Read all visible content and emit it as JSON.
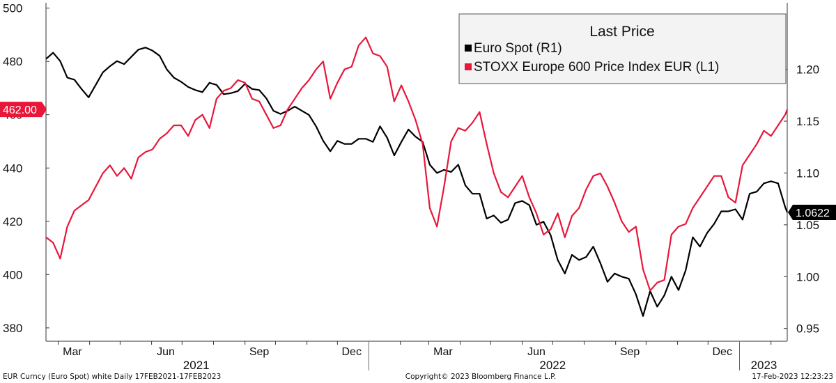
{
  "chart_data": {
    "type": "line",
    "title": "",
    "x_start": "2021-02-17",
    "x_end": "2023-02-17",
    "left_axis": {
      "ylim": [
        375,
        502
      ],
      "ticks": [
        380,
        400,
        420,
        440,
        460,
        480,
        500
      ]
    },
    "right_axis": {
      "ylim": [
        0.9377,
        1.2642
      ],
      "ticks": [
        "0.95",
        "1.00",
        "1.05",
        "1.10",
        "1.15",
        "1.20"
      ]
    },
    "x_month_labels": [
      {
        "label": "Mar",
        "date": "2021-03-15"
      },
      {
        "label": "Jun",
        "date": "2021-06-15"
      },
      {
        "label": "Sep",
        "date": "2021-09-15"
      },
      {
        "label": "Dec",
        "date": "2021-12-15"
      },
      {
        "label": "Mar",
        "date": "2022-03-15"
      },
      {
        "label": "Jun",
        "date": "2022-06-15"
      },
      {
        "label": "Sep",
        "date": "2022-09-15"
      },
      {
        "label": "Dec",
        "date": "2022-12-15"
      }
    ],
    "x_year_labels": [
      {
        "label": "2021",
        "date": "2021-07-15"
      },
      {
        "label": "2022",
        "date": "2022-07-01"
      },
      {
        "label": "2023",
        "date": "2023-01-25"
      }
    ],
    "legend": {
      "title": "Last Price",
      "placement": "top-right",
      "entries": [
        {
          "text": "Euro Spot  (R1)",
          "color": "#000000"
        },
        {
          "text": "STOXX Europe 600 Price Index EUR  (L1)",
          "color": "#e8173a"
        }
      ]
    },
    "series": [
      {
        "name": "STOXX Europe 600 Price Index EUR",
        "axis": "left",
        "color": "#e8173a",
        "last_value_label": "462.00",
        "dates": [
          "2021-02-17",
          "2021-02-24",
          "2021-03-03",
          "2021-03-10",
          "2021-03-17",
          "2021-03-24",
          "2021-03-31",
          "2021-04-07",
          "2021-04-14",
          "2021-04-21",
          "2021-04-28",
          "2021-05-05",
          "2021-05-12",
          "2021-05-19",
          "2021-05-26",
          "2021-06-02",
          "2021-06-09",
          "2021-06-16",
          "2021-06-23",
          "2021-06-30",
          "2021-07-07",
          "2021-07-14",
          "2021-07-21",
          "2021-07-28",
          "2021-08-04",
          "2021-08-11",
          "2021-08-18",
          "2021-08-25",
          "2021-09-01",
          "2021-09-08",
          "2021-09-15",
          "2021-09-22",
          "2021-09-29",
          "2021-10-06",
          "2021-10-13",
          "2021-10-20",
          "2021-10-27",
          "2021-11-03",
          "2021-11-10",
          "2021-11-17",
          "2021-11-24",
          "2021-12-01",
          "2021-12-08",
          "2021-12-15",
          "2021-12-22",
          "2021-12-29",
          "2022-01-05",
          "2022-01-12",
          "2022-01-19",
          "2022-01-26",
          "2022-02-02",
          "2022-02-09",
          "2022-02-16",
          "2022-02-23",
          "2022-03-02",
          "2022-03-09",
          "2022-03-16",
          "2022-03-23",
          "2022-03-30",
          "2022-04-06",
          "2022-04-13",
          "2022-04-20",
          "2022-04-27",
          "2022-05-04",
          "2022-05-11",
          "2022-05-18",
          "2022-05-25",
          "2022-06-01",
          "2022-06-08",
          "2022-06-15",
          "2022-06-22",
          "2022-06-29",
          "2022-07-06",
          "2022-07-13",
          "2022-07-20",
          "2022-07-27",
          "2022-08-03",
          "2022-08-10",
          "2022-08-17",
          "2022-08-24",
          "2022-08-31",
          "2022-09-07",
          "2022-09-14",
          "2022-09-21",
          "2022-09-28",
          "2022-10-05",
          "2022-10-12",
          "2022-10-19",
          "2022-10-26",
          "2022-11-02",
          "2022-11-09",
          "2022-11-16",
          "2022-11-23",
          "2022-11-30",
          "2022-12-07",
          "2022-12-14",
          "2022-12-21",
          "2022-12-28",
          "2023-01-04",
          "2023-01-11",
          "2023-01-18",
          "2023-01-25",
          "2023-02-01",
          "2023-02-08",
          "2023-02-15",
          "2023-02-17"
        ],
        "values": [
          414,
          412,
          406,
          418,
          424,
          426,
          428,
          433,
          438,
          441,
          437,
          440,
          436,
          444,
          446,
          447,
          451,
          453,
          456,
          456,
          452,
          458,
          460,
          455,
          466,
          469,
          470,
          473,
          472,
          466,
          465,
          460,
          455,
          456,
          462,
          466,
          470,
          473,
          477,
          480,
          466,
          472,
          477,
          478,
          486,
          489,
          483,
          482,
          478,
          465,
          471,
          465,
          458,
          449,
          425,
          418,
          433,
          450,
          455,
          454,
          457,
          461,
          449,
          438,
          431,
          429,
          433,
          437,
          429,
          423,
          415,
          417,
          423,
          414,
          422,
          425,
          432,
          437,
          438,
          433,
          427,
          420,
          416,
          418,
          402,
          394,
          397,
          398,
          415,
          418,
          419,
          425,
          429,
          433,
          437,
          437,
          429,
          427,
          441,
          445,
          449,
          454,
          452,
          456,
          460,
          462
        ]
      },
      {
        "name": "Euro Spot",
        "axis": "right",
        "color": "#000000",
        "last_value_label": "1.0622",
        "dates": [
          "2021-02-17",
          "2021-02-24",
          "2021-03-03",
          "2021-03-10",
          "2021-03-17",
          "2021-03-24",
          "2021-03-31",
          "2021-04-07",
          "2021-04-14",
          "2021-04-21",
          "2021-04-28",
          "2021-05-05",
          "2021-05-12",
          "2021-05-19",
          "2021-05-26",
          "2021-06-02",
          "2021-06-09",
          "2021-06-16",
          "2021-06-23",
          "2021-06-30",
          "2021-07-07",
          "2021-07-14",
          "2021-07-21",
          "2021-07-28",
          "2021-08-04",
          "2021-08-11",
          "2021-08-18",
          "2021-08-25",
          "2021-09-01",
          "2021-09-08",
          "2021-09-15",
          "2021-09-22",
          "2021-09-29",
          "2021-10-06",
          "2021-10-13",
          "2021-10-20",
          "2021-10-27",
          "2021-11-03",
          "2021-11-10",
          "2021-11-17",
          "2021-11-24",
          "2021-12-01",
          "2021-12-08",
          "2021-12-15",
          "2021-12-22",
          "2021-12-29",
          "2022-01-05",
          "2022-01-12",
          "2022-01-19",
          "2022-01-26",
          "2022-02-02",
          "2022-02-09",
          "2022-02-16",
          "2022-02-23",
          "2022-03-02",
          "2022-03-09",
          "2022-03-16",
          "2022-03-23",
          "2022-03-30",
          "2022-04-06",
          "2022-04-13",
          "2022-04-20",
          "2022-04-27",
          "2022-05-04",
          "2022-05-11",
          "2022-05-18",
          "2022-05-25",
          "2022-06-01",
          "2022-06-08",
          "2022-06-15",
          "2022-06-22",
          "2022-06-29",
          "2022-07-06",
          "2022-07-13",
          "2022-07-20",
          "2022-07-27",
          "2022-08-03",
          "2022-08-10",
          "2022-08-17",
          "2022-08-24",
          "2022-08-31",
          "2022-09-07",
          "2022-09-14",
          "2022-09-21",
          "2022-09-28",
          "2022-10-05",
          "2022-10-12",
          "2022-10-19",
          "2022-10-26",
          "2022-11-02",
          "2022-11-09",
          "2022-11-16",
          "2022-11-23",
          "2022-11-30",
          "2022-12-07",
          "2022-12-14",
          "2022-12-21",
          "2022-12-28",
          "2023-01-04",
          "2023-01-11",
          "2023-01-18",
          "2023-01-25",
          "2023-02-01",
          "2023-02-08",
          "2023-02-15",
          "2023-02-17"
        ],
        "values": [
          1.21,
          1.216,
          1.208,
          1.192,
          1.19,
          1.181,
          1.173,
          1.185,
          1.197,
          1.203,
          1.208,
          1.205,
          1.212,
          1.219,
          1.221,
          1.218,
          1.213,
          1.2,
          1.192,
          1.188,
          1.183,
          1.18,
          1.178,
          1.187,
          1.185,
          1.176,
          1.177,
          1.179,
          1.186,
          1.181,
          1.18,
          1.172,
          1.16,
          1.157,
          1.16,
          1.164,
          1.16,
          1.156,
          1.145,
          1.131,
          1.121,
          1.131,
          1.128,
          1.128,
          1.133,
          1.133,
          1.13,
          1.145,
          1.134,
          1.117,
          1.13,
          1.142,
          1.135,
          1.13,
          1.108,
          1.1,
          1.103,
          1.101,
          1.108,
          1.088,
          1.08,
          1.08,
          1.056,
          1.059,
          1.052,
          1.055,
          1.071,
          1.073,
          1.069,
          1.05,
          1.053,
          1.04,
          1.016,
          1.003,
          1.021,
          1.016,
          1.019,
          1.029,
          1.013,
          0.995,
          1.003,
          1.0,
          0.998,
          0.983,
          0.962,
          0.986,
          0.971,
          0.982,
          1.0,
          0.987,
          1.006,
          1.038,
          1.029,
          1.042,
          1.051,
          1.063,
          1.063,
          1.065,
          1.055,
          1.08,
          1.082,
          1.09,
          1.092,
          1.09,
          1.067,
          1.062
        ]
      }
    ],
    "footer": {
      "left": "EUR Curncy (Euro Spot) white  Daily 17FEB2021-17FEB2023",
      "center": "Copyright© 2023 Bloomberg Finance L.P.",
      "right": "17-Feb-2023 12:23:23"
    }
  },
  "colors": {
    "stoxx": "#e8173a",
    "euro": "#000000",
    "legend_bg": "#f3f3f3"
  }
}
